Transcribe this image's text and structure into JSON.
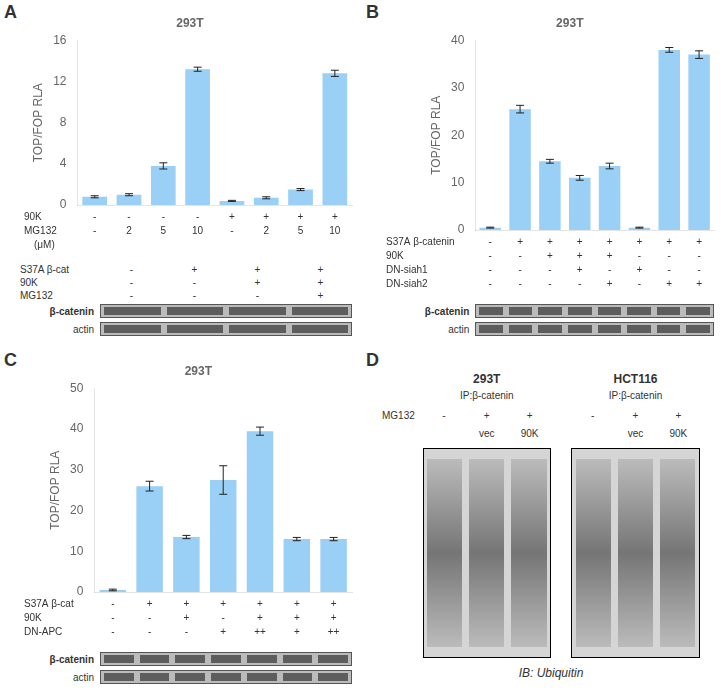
{
  "chart_data": [
    {
      "type": "bar",
      "panel_label": "A",
      "title": "293T",
      "ylabel": "TOP/FOP RLA",
      "categories": [
        null,
        null,
        null,
        null,
        null,
        null,
        null,
        null
      ],
      "values": [
        0.8,
        1.0,
        3.8,
        13.2,
        0.4,
        0.7,
        1.5,
        12.8
      ],
      "errors": [
        0.1,
        0.1,
        0.3,
        0.2,
        0.05,
        0.1,
        0.1,
        0.3
      ],
      "ylim": [
        0,
        16
      ],
      "yticks": [
        0,
        4,
        8,
        12,
        16
      ],
      "grid": false,
      "tick_labels": "y",
      "annotations": {
        "rows": [
          {
            "label": "90K",
            "values": [
              "-",
              "-",
              "-",
              "-",
              "+",
              "+",
              "+",
              "+"
            ]
          },
          {
            "label": "MG132",
            "values": [
              "-",
              "2",
              "5",
              "10",
              "-",
              "2",
              "5",
              "10"
            ]
          },
          {
            "label": "(μM)"
          }
        ],
        "blot": {
          "rows": [
            {
              "label": "S37A β-cat",
              "values": [
                "-",
                "+",
                "+",
                "+"
              ]
            },
            {
              "label": "90K",
              "values": [
                "-",
                "-",
                "+",
                "+"
              ]
            },
            {
              "label": "MG132",
              "values": [
                "-",
                "-",
                "-",
                "+"
              ]
            }
          ],
          "names": [
            "β-catenin",
            "actin"
          ]
        }
      }
    },
    {
      "type": "bar",
      "panel_label": "B",
      "title": "293T",
      "ylabel": "TOP/FOP RLA",
      "categories": [
        null,
        null,
        null,
        null,
        null,
        null,
        null,
        null
      ],
      "values": [
        0.5,
        25.5,
        14.5,
        11.0,
        13.5,
        0.5,
        38.0,
        37.0
      ],
      "errors": [
        0.1,
        0.8,
        0.4,
        0.5,
        0.6,
        0.1,
        0.5,
        0.8
      ],
      "ylim": [
        0,
        40
      ],
      "yticks": [
        0,
        10,
        20,
        30,
        40
      ],
      "grid": false,
      "tick_labels": "y",
      "annotations": {
        "rows": [
          {
            "label": "S37A β-catenin",
            "values": [
              "-",
              "+",
              "+",
              "+",
              "+",
              "+",
              "+",
              "+"
            ]
          },
          {
            "label": "90K",
            "values": [
              "-",
              "-",
              "+",
              "+",
              "+",
              "-",
              "-",
              "-"
            ]
          },
          {
            "label": "DN-siah1",
            "values": [
              "-",
              "-",
              "-",
              "+",
              "-",
              "+",
              "-",
              "-"
            ]
          },
          {
            "label": "DN-siah2",
            "values": [
              "-",
              "-",
              "-",
              "-",
              "+",
              "-",
              "+",
              "+"
            ]
          }
        ],
        "blot": {
          "names": [
            "β-catenin",
            "actin"
          ]
        }
      }
    },
    {
      "type": "bar",
      "panel_label": "C",
      "title": "293T",
      "ylabel": "TOP/FOP RLA",
      "categories": [
        null,
        null,
        null,
        null,
        null,
        null,
        null
      ],
      "values": [
        0.5,
        26.0,
        13.5,
        27.5,
        39.5,
        13.0,
        13.0
      ],
      "errors": [
        0.2,
        1.2,
        0.4,
        3.5,
        1.0,
        0.4,
        0.4
      ],
      "ylim": [
        0,
        50
      ],
      "yticks": [
        0,
        10,
        20,
        30,
        40,
        50
      ],
      "grid": false,
      "tick_labels": "y",
      "annotations": {
        "rows": [
          {
            "label": "S37A β-cat",
            "values": [
              "-",
              "+",
              "+",
              "+",
              "+",
              "+",
              "+"
            ]
          },
          {
            "label": "90K",
            "values": [
              "-",
              "-",
              "+",
              "-",
              "+",
              "+",
              "+"
            ]
          },
          {
            "label": "DN-APC",
            "values": [
              "-",
              "-",
              "-",
              "+",
              "++",
              "+",
              "++"
            ]
          }
        ],
        "blot": {
          "names": [
            "β-catenin",
            "actin"
          ]
        }
      }
    },
    {
      "type": "blot",
      "panel_label": "D",
      "annotations": {
        "row_label": "MG132",
        "groups": [
          {
            "title": "293T",
            "ip_label": "IP:β-catenin",
            "mg132": [
              "-",
              "+",
              "+"
            ],
            "vec_90k": [
              "vec",
              "90K"
            ]
          },
          {
            "title": "HCT116",
            "ip_label": "IP:β-catenin",
            "mg132": [
              "-",
              "+",
              "+"
            ],
            "vec_90k": [
              "vec",
              "90K"
            ]
          }
        ],
        "ib_label": "IB: Ubiquitin"
      }
    }
  ]
}
